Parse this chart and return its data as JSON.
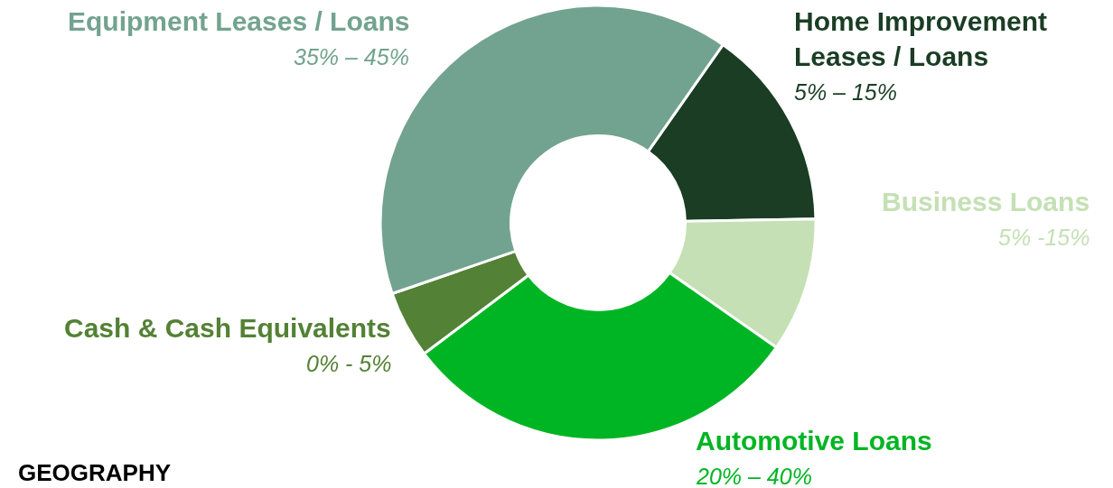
{
  "chart_data": {
    "type": "donut",
    "categories": [
      "Home Improvement Leases / Loans",
      "Business Loans",
      "Automotive Loans",
      "Cash & Cash Equivalents",
      "Equipment Leases / Loans"
    ],
    "values": [
      15,
      10,
      30,
      5,
      40
    ],
    "colors": [
      "#1a3d24",
      "#c5e0b5",
      "#00b523",
      "#538135",
      "#72a390"
    ],
    "legend": false,
    "annotations": [
      "5% – 15%",
      "5% -15%",
      "20% – 40%",
      "0% - 5%",
      "35% – 45%",
      "GEOGRAPHY"
    ]
  }
}
